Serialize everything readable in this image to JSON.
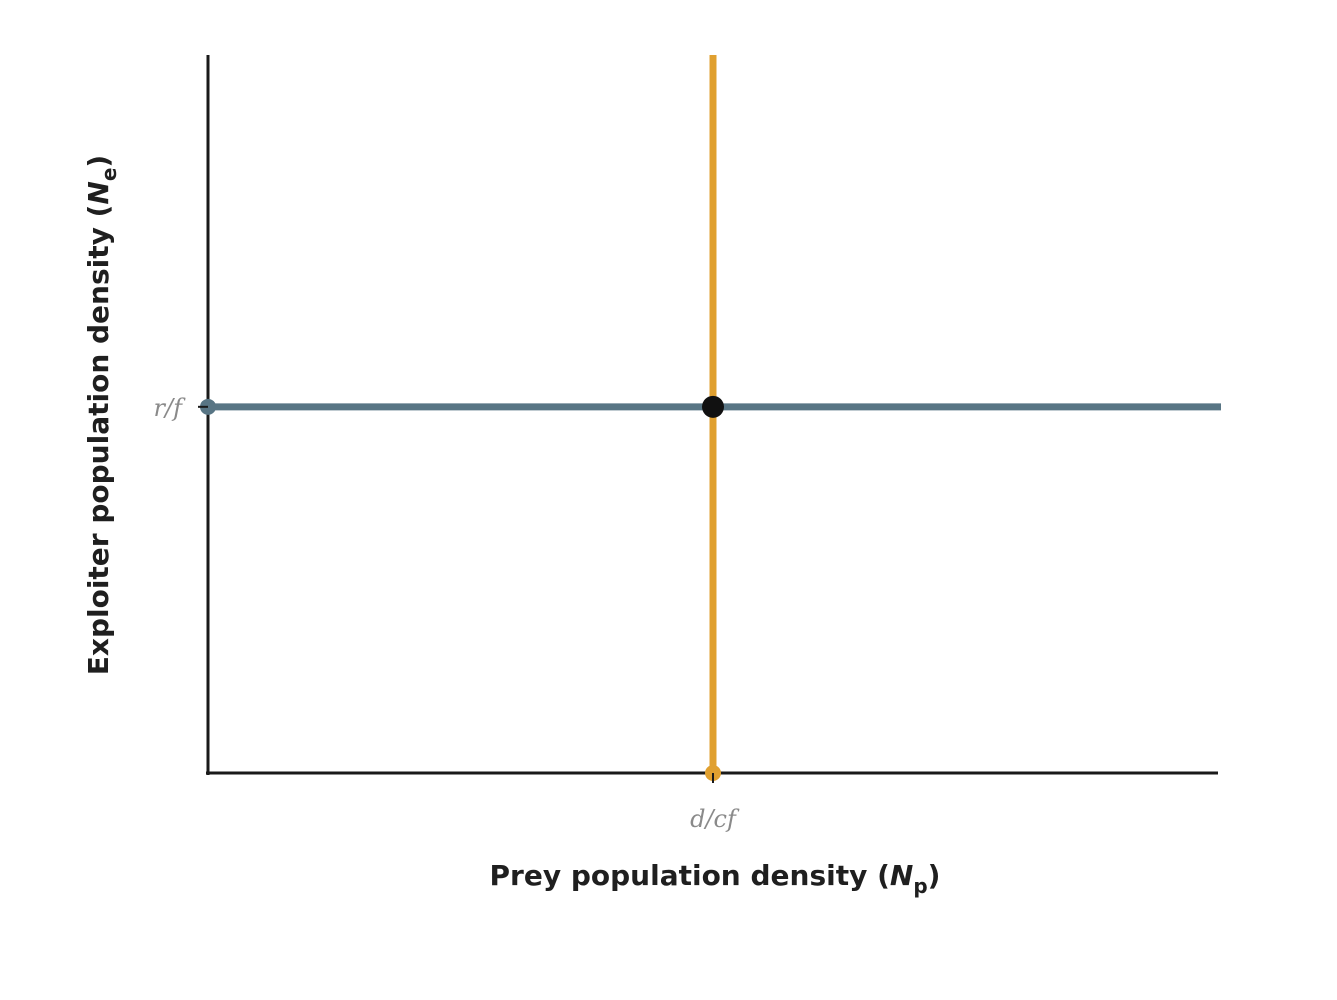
{
  "chart_data": {
    "type": "line",
    "xlabel": "Prey population density (N",
    "xlabel_subscript": "p",
    "xlabel_close": ")",
    "ylabel": "Exploiter population density (N",
    "ylabel_subscript": "e",
    "ylabel_close": ")",
    "x_tick_labels": [
      {
        "label": "d/cf",
        "value": 0.5
      }
    ],
    "y_tick_labels": [
      {
        "label": "r/f",
        "value": 0.51
      }
    ],
    "xlim": [
      0,
      1
    ],
    "ylim": [
      0,
      1
    ],
    "grid": false,
    "series": [
      {
        "orientation": "horizontal",
        "value": 0.51,
        "color": "#587584"
      },
      {
        "orientation": "vertical",
        "value": 0.5,
        "color": "#e0a030"
      }
    ],
    "equilibrium_point": {
      "x": 0.5,
      "y": 0.51,
      "color": "#111111"
    }
  }
}
